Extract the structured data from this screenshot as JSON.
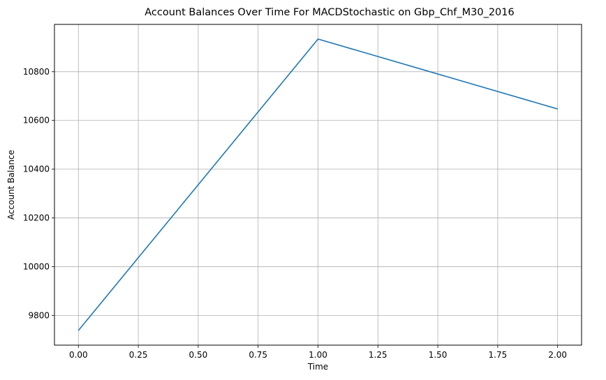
{
  "chart_data": {
    "type": "line",
    "title": "Account Balances Over Time For MACDStochastic on Gbp_Chf_M30_2016",
    "xlabel": "Time",
    "ylabel": "Account Balance",
    "x": [
      0,
      1,
      2
    ],
    "series": [
      {
        "values": [
          9738,
          10934,
          10647
        ],
        "color": "#1f77b4"
      }
    ],
    "xlim": [
      -0.1,
      2.1
    ],
    "ylim": [
      9678,
      10994
    ],
    "xticks": [
      0.0,
      0.25,
      0.5,
      0.75,
      1.0,
      1.25,
      1.5,
      1.75,
      2.0
    ],
    "xtick_labels": [
      "0.00",
      "0.25",
      "0.50",
      "0.75",
      "1.00",
      "1.25",
      "1.50",
      "1.75",
      "2.00"
    ],
    "yticks": [
      9800,
      10000,
      10200,
      10400,
      10600,
      10800
    ],
    "ytick_labels": [
      "9800",
      "10000",
      "10200",
      "10400",
      "10600",
      "10800"
    ],
    "grid": true,
    "legend": "none"
  }
}
